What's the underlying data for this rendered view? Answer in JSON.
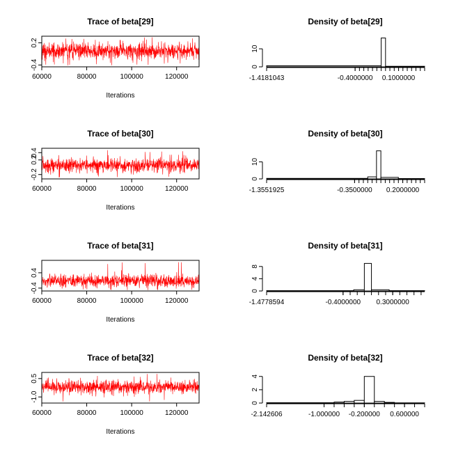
{
  "panels": [
    {
      "trace": {
        "type": "line",
        "title": "Trace of beta[29]",
        "xlabel": "Iterations",
        "xlim": [
          60000,
          130000
        ],
        "ylim": [
          -0.45,
          0.38
        ],
        "xticks": [
          "60000",
          "80000",
          "100000",
          "120000"
        ],
        "xtick_values": [
          60000,
          80000,
          100000,
          120000
        ],
        "yticks": [
          "-0.4",
          "0.2"
        ],
        "ytick_values": [
          -0.4,
          0.2
        ],
        "series": [
          {
            "color": "#ff0000",
            "center": -0.02,
            "spread": 0.11,
            "min": -0.42,
            "max": 0.35
          }
        ]
      },
      "density": {
        "type": "bar",
        "title": "Density of beta[29]",
        "xlim": [
          -1.4181043,
          0.4
        ],
        "ylim": [
          0,
          17
        ],
        "xticks": [
          "-1.4181043",
          "-0.4000000",
          "0.1000000"
        ],
        "xtick_values": [
          -1.4181043,
          -0.4,
          0.1
        ],
        "minor_ticks": [
          -0.4,
          -0.35,
          -0.3,
          -0.25,
          -0.2,
          -0.15,
          -0.1,
          -0.05,
          0,
          0.05,
          0.1,
          0.15,
          0.2,
          0.25,
          0.3,
          0.35,
          0.4
        ],
        "yticks": [
          "0",
          "10"
        ],
        "ytick_values": [
          0,
          10
        ],
        "bins": [
          {
            "x0": -1.4181043,
            "x1": -0.1,
            "value": 0.6
          },
          {
            "x0": -0.1,
            "x1": -0.05,
            "value": 16
          },
          {
            "x0": -0.05,
            "x1": 0.4,
            "value": 0.3
          }
        ]
      }
    },
    {
      "trace": {
        "type": "line",
        "title": "Trace of beta[30]",
        "xlabel": "Iterations",
        "xlim": [
          60000,
          130000
        ],
        "ylim": [
          -0.32,
          0.52
        ],
        "xticks": [
          "60000",
          "80000",
          "100000",
          "120000"
        ],
        "xtick_values": [
          60000,
          80000,
          100000,
          120000
        ],
        "yticks": [
          "-0.2",
          "0.2",
          "0.4"
        ],
        "ytick_values": [
          -0.2,
          0.2,
          0.4
        ],
        "series": [
          {
            "color": "#ff0000",
            "center": 0.05,
            "spread": 0.1,
            "min": -0.28,
            "max": 0.48
          }
        ]
      },
      "density": {
        "type": "bar",
        "title": "Density of beta[30]",
        "xlim": [
          -1.3551925,
          0.45
        ],
        "ylim": [
          0,
          18
        ],
        "xticks": [
          "-1.3551925",
          "-0.3500000",
          "0.2000000"
        ],
        "xtick_values": [
          -1.3551925,
          -0.35,
          0.2
        ],
        "minor_ticks": [
          -0.35,
          -0.3,
          -0.25,
          -0.2,
          -0.15,
          -0.1,
          -0.05,
          0,
          0.05,
          0.1,
          0.15,
          0.2,
          0.25,
          0.3,
          0.35,
          0.4,
          0.45
        ],
        "yticks": [
          "0",
          "10"
        ],
        "ytick_values": [
          0,
          10
        ],
        "bins": [
          {
            "x0": -1.3551925,
            "x1": -0.2,
            "value": 0.3
          },
          {
            "x0": -0.2,
            "x1": -0.1,
            "value": 1.2
          },
          {
            "x0": -0.1,
            "x1": -0.05,
            "value": 16.5
          },
          {
            "x0": -0.05,
            "x1": 0.15,
            "value": 0.9
          },
          {
            "x0": 0.15,
            "x1": 0.45,
            "value": 0.2
          }
        ]
      }
    },
    {
      "trace": {
        "type": "line",
        "title": "Trace of beta[31]",
        "xlabel": "Iterations",
        "xlim": [
          60000,
          130000
        ],
        "ylim": [
          -0.55,
          1.05
        ],
        "xticks": [
          "60000",
          "80000",
          "100000",
          "120000"
        ],
        "xtick_values": [
          60000,
          80000,
          100000,
          120000
        ],
        "yticks": [
          "-0.4",
          "0.4"
        ],
        "ytick_values": [
          -0.4,
          0.4
        ],
        "series": [
          {
            "color": "#ff0000",
            "center": -0.02,
            "spread": 0.17,
            "min": -0.5,
            "max": 0.98
          }
        ]
      },
      "density": {
        "type": "bar",
        "title": "Density of beta[31]",
        "xlim": [
          -1.4778594,
          0.75
        ],
        "ylim": [
          0,
          10
        ],
        "xticks": [
          "-1.4778594",
          "-0.4000000",
          "0.3000000"
        ],
        "xtick_values": [
          -1.4778594,
          -0.4,
          0.3
        ],
        "minor_ticks": [
          -0.4,
          -0.3,
          -0.2,
          -0.1,
          0,
          0.1,
          0.2,
          0.3,
          0.4,
          0.5,
          0.6,
          0.7
        ],
        "yticks": [
          "0",
          "4",
          "8"
        ],
        "ytick_values": [
          0,
          4,
          8
        ],
        "bins": [
          {
            "x0": -1.4778594,
            "x1": -0.25,
            "value": 0.1
          },
          {
            "x0": -0.25,
            "x1": -0.1,
            "value": 0.4
          },
          {
            "x0": -0.1,
            "x1": 0.0,
            "value": 9
          },
          {
            "x0": 0.0,
            "x1": 0.25,
            "value": 0.4
          },
          {
            "x0": 0.25,
            "x1": 0.75,
            "value": 0.1
          }
        ]
      }
    },
    {
      "trace": {
        "type": "line",
        "title": "Trace of beta[32]",
        "xlabel": "Iterations",
        "xlim": [
          60000,
          130000
        ],
        "ylim": [
          -1.5,
          1.0
        ],
        "xticks": [
          "60000",
          "80000",
          "100000",
          "120000"
        ],
        "xtick_values": [
          60000,
          80000,
          100000,
          120000
        ],
        "yticks": [
          "-1.0",
          "0.5"
        ],
        "ytick_values": [
          -1.0,
          0.5
        ],
        "series": [
          {
            "color": "#ff0000",
            "center": -0.2,
            "spread": 0.28,
            "min": -1.4,
            "max": 0.9
          }
        ]
      },
      "density": {
        "type": "bar",
        "title": "Density of beta[32]",
        "xlim": [
          -2.142606,
          1.0
        ],
        "ylim": [
          0,
          4.6
        ],
        "xticks": [
          "-2.142606",
          "-1.000000",
          "-0.200000",
          "0.600000"
        ],
        "xtick_values": [
          -2.142606,
          -1.0,
          -0.2,
          0.6
        ],
        "minor_ticks": [
          -1.0,
          -0.8,
          -0.6,
          -0.4,
          -0.2,
          0,
          0.2,
          0.4,
          0.6,
          0.8,
          1.0
        ],
        "yticks": [
          "0",
          "2",
          "4"
        ],
        "ytick_values": [
          0,
          2,
          4
        ],
        "bins": [
          {
            "x0": -2.142606,
            "x1": -0.8,
            "value": 0.05
          },
          {
            "x0": -0.8,
            "x1": -0.6,
            "value": 0.15
          },
          {
            "x0": -0.6,
            "x1": -0.4,
            "value": 0.25
          },
          {
            "x0": -0.4,
            "x1": -0.2,
            "value": 0.4
          },
          {
            "x0": -0.2,
            "x1": 0.0,
            "value": 4.0
          },
          {
            "x0": 0.0,
            "x1": 0.2,
            "value": 0.25
          },
          {
            "x0": 0.2,
            "x1": 0.4,
            "value": 0.1
          },
          {
            "x0": 0.4,
            "x1": 1.0,
            "value": 0.03
          }
        ]
      }
    }
  ]
}
